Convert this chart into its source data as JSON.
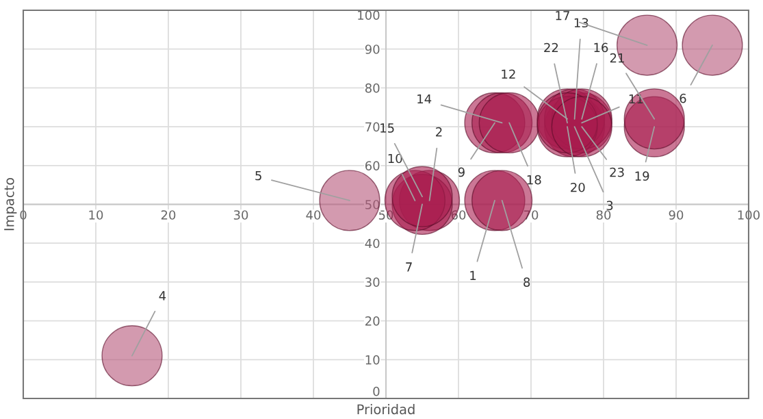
{
  "chart_data": {
    "type": "bubble",
    "xlabel": "Prioridad",
    "ylabel": "Impacto",
    "x": [
      65,
      56,
      76,
      15,
      45,
      95,
      55,
      66,
      65,
      54,
      77,
      75,
      76,
      66,
      55,
      77,
      86,
      67,
      87,
      75,
      87,
      75,
      77
    ],
    "values": [
      51,
      51,
      70,
      11,
      51,
      91,
      50,
      51,
      71,
      51,
      71,
      72,
      72,
      71,
      52,
      72,
      91,
      71,
      70,
      70,
      72,
      71,
      70
    ],
    "sizes": [
      1,
      1,
      1,
      1,
      1,
      1,
      1,
      1,
      1,
      1,
      1,
      1,
      1,
      1,
      1,
      1,
      1,
      1,
      1,
      1,
      1,
      1,
      1
    ],
    "colors": [
      "#a81d4f",
      "#a81d4f",
      "#a81d4f",
      "#b5567a",
      "#b5567a",
      "#b5567a",
      "#a81d4f",
      "#a81d4f",
      "#a81d4f",
      "#a81d4f",
      "#a81d4f",
      "#a81d4f",
      "#a81d4f",
      "#a81d4f",
      "#a81d4f",
      "#a81d4f",
      "#b5567a",
      "#a81d4f",
      "#a81d4f",
      "#a81d4f",
      "#a81d4f",
      "#a81d4f",
      "#a81d4f"
    ],
    "annotations": [
      {
        "text": "1",
        "x": 65,
        "y": 51
      },
      {
        "text": "2",
        "x": 56,
        "y": 51
      },
      {
        "text": "3",
        "x": 76,
        "y": 70
      },
      {
        "text": "4",
        "x": 15,
        "y": 11
      },
      {
        "text": "5",
        "x": 45,
        "y": 51
      },
      {
        "text": "6",
        "x": 95,
        "y": 91
      },
      {
        "text": "7",
        "x": 55,
        "y": 50
      },
      {
        "text": "8",
        "x": 66,
        "y": 51
      },
      {
        "text": "9",
        "x": 65,
        "y": 71
      },
      {
        "text": "10",
        "x": 54,
        "y": 51
      },
      {
        "text": "11",
        "x": 77,
        "y": 71
      },
      {
        "text": "12",
        "x": 75,
        "y": 72
      },
      {
        "text": "13",
        "x": 76,
        "y": 72
      },
      {
        "text": "14",
        "x": 66,
        "y": 71
      },
      {
        "text": "15",
        "x": 55,
        "y": 52
      },
      {
        "text": "16",
        "x": 77,
        "y": 72
      },
      {
        "text": "17",
        "x": 86,
        "y": 91
      },
      {
        "text": "18",
        "x": 67,
        "y": 71
      },
      {
        "text": "19",
        "x": 87,
        "y": 70
      },
      {
        "text": "20",
        "x": 75,
        "y": 70
      },
      {
        "text": "21",
        "x": 87,
        "y": 72
      },
      {
        "text": "22",
        "x": 75,
        "y": 71
      },
      {
        "text": "23",
        "x": 77,
        "y": 70
      }
    ],
    "xlim": [
      0,
      100
    ],
    "ylim": [
      0,
      100
    ],
    "xticks": [
      0,
      10,
      20,
      30,
      40,
      50,
      60,
      70,
      80,
      90,
      100
    ],
    "yticks": [
      0,
      10,
      20,
      30,
      40,
      50,
      60,
      70,
      80,
      90,
      100
    ],
    "grid": true,
    "legend": false
  }
}
